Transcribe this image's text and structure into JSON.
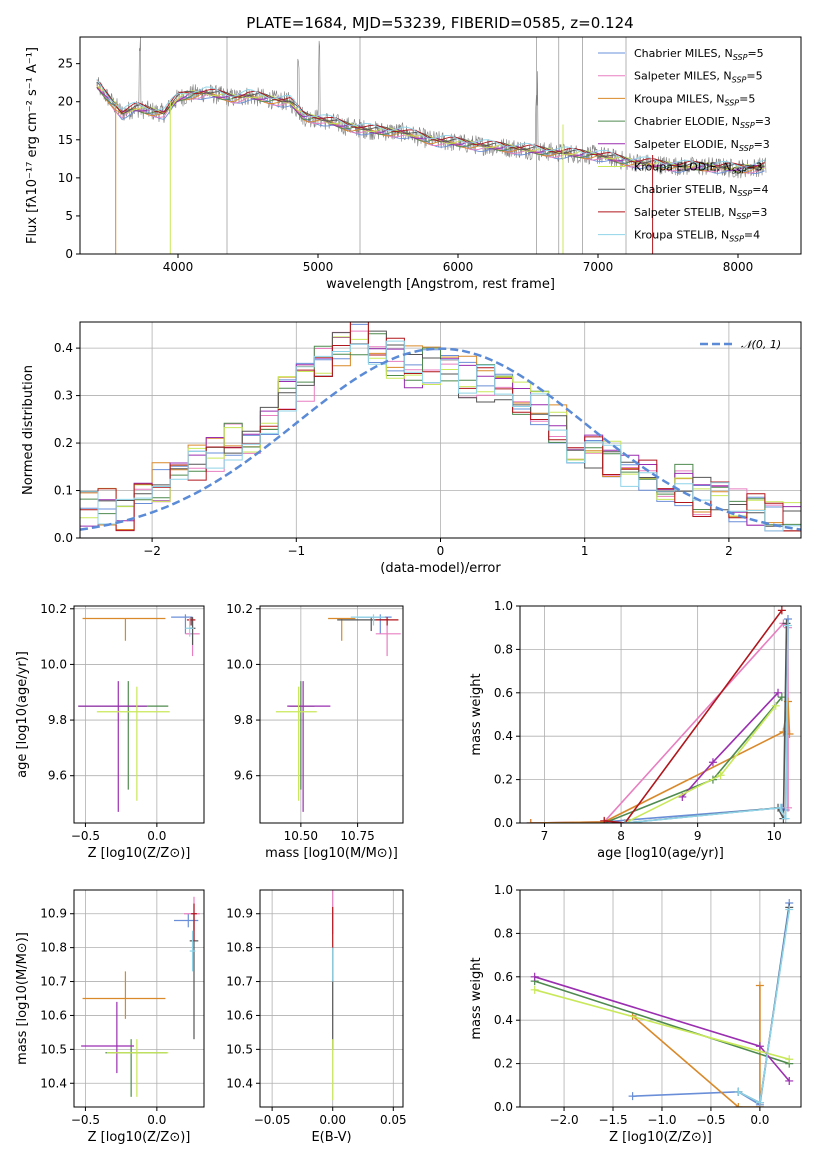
{
  "figure": {
    "title": "PLATE=1684, MJD=53239, FIBERID=0585, z=0.124"
  },
  "colors": {
    "Chabrier MILES": "#6a8fd8",
    "Salpeter MILES": "#e87fc0",
    "Kroupa MILES": "#d9892a",
    "Chabrier ELODIE": "#4f8a4f",
    "Salpeter ELODIE": "#9a2fb0",
    "Kroupa ELODIE": "#c9e85a",
    "Chabrier STELIB": "#555555",
    "Salpeter STELIB": "#b0161c",
    "Kroupa STELIB": "#8fd3e8",
    "Gaussian": "#5b8bd6",
    "Spectrum": "#808080"
  },
  "chart_data": [
    {
      "id": "spectrum",
      "type": "line",
      "xlabel": "wavelength [Angstrom, rest frame]",
      "ylabel": "Flux [fλ10⁻¹⁷ erg cm⁻² s⁻¹ A⁻¹]",
      "xlim": [
        3300,
        8450
      ],
      "ylim": [
        0,
        28.5
      ],
      "xticks": [
        4000,
        5000,
        6000,
        7000,
        8000
      ],
      "yticks": [
        0,
        5,
        10,
        15,
        20,
        25
      ],
      "grid": false,
      "legend_position": "top-right",
      "legend": [
        "Chabrier MILES, NSSP=5",
        "Salpeter MILES, NSSP=5",
        "Kroupa MILES, NSSP=5",
        "Chabrier ELODIE, NSSP=3",
        "Salpeter ELODIE, NSSP=3",
        "Kroupa ELODIE, NSSP=3",
        "Chabrier STELIB, NSSP=4",
        "Salpeter STELIB, NSSP=3",
        "Kroupa STELIB, NSSP=4"
      ],
      "data_trend": {
        "wavelength": [
          3420,
          3500,
          3600,
          3700,
          3800,
          3900,
          4000,
          4100,
          4200,
          4300,
          4400,
          4500,
          4600,
          4700,
          4800,
          4900,
          5000,
          5200,
          5400,
          5600,
          5800,
          6000,
          6200,
          6400,
          6600,
          6800,
          7000,
          7200,
          7400,
          7600,
          7800,
          8000,
          8200
        ],
        "flux": [
          22.2,
          20.5,
          18.5,
          19.2,
          18.8,
          18.5,
          20.5,
          21.0,
          21.2,
          20.8,
          20.5,
          20.8,
          20.5,
          20.2,
          20.0,
          18.0,
          17.8,
          16.8,
          16.2,
          16.0,
          15.0,
          14.6,
          14.2,
          13.9,
          13.5,
          13.2,
          13.0,
          12.2,
          11.8,
          11.5,
          11.5,
          11.2,
          11.5
        ]
      }
    },
    {
      "id": "residual-hist",
      "type": "histogram",
      "xlabel": "(data-model)/error",
      "ylabel": "Normed distribution",
      "xlim": [
        -2.5,
        2.5
      ],
      "ylim": [
        0,
        0.455
      ],
      "xticks": [
        -2,
        -1,
        0,
        1,
        2
      ],
      "yticks": [
        0.0,
        0.1,
        0.2,
        0.3,
        0.4
      ],
      "grid": true,
      "legend_position": "top-right",
      "legend": [
        "𝒩(0, 1)"
      ],
      "bins": 40,
      "profile": [
        0.07,
        0.06,
        0.06,
        0.09,
        0.12,
        0.14,
        0.16,
        0.18,
        0.2,
        0.22,
        0.26,
        0.3,
        0.33,
        0.36,
        0.4,
        0.42,
        0.4,
        0.38,
        0.36,
        0.36,
        0.36,
        0.34,
        0.33,
        0.32,
        0.3,
        0.28,
        0.24,
        0.2,
        0.18,
        0.16,
        0.15,
        0.13,
        0.12,
        0.11,
        0.09,
        0.08,
        0.06,
        0.05,
        0.04,
        0.03
      ]
    },
    {
      "id": "age-vs-Z",
      "type": "errorbar",
      "xlabel": "Z [log10(Z/Z⊙)]",
      "ylabel": "age [log10(age/yr)]",
      "xlim": [
        -0.58,
        0.33
      ],
      "ylim": [
        9.43,
        10.21
      ],
      "xticks": [
        -0.5,
        0.0
      ],
      "yticks": [
        9.6,
        9.8,
        10.0,
        10.2
      ],
      "grid": true,
      "points": [
        {
          "series": "Chabrier MILES",
          "x": 0.2,
          "y": 10.17,
          "xerr": [
            0.1,
            0.05
          ],
          "yerr": [
            0.06,
            0.01
          ]
        },
        {
          "series": "Salpeter MILES",
          "x": 0.25,
          "y": 10.11,
          "xerr": [
            0.05,
            0.05
          ],
          "yerr": [
            0.08,
            0.05
          ]
        },
        {
          "series": "Kroupa MILES",
          "x": -0.22,
          "y": 10.165,
          "xerr": [
            0.3,
            0.28
          ],
          "yerr": [
            0.08,
            0.0
          ]
        },
        {
          "series": "Chabrier ELODIE",
          "x": -0.2,
          "y": 9.85,
          "xerr": [
            0.35,
            0.28
          ],
          "yerr": [
            0.3,
            0.09
          ]
        },
        {
          "series": "Salpeter ELODIE",
          "x": -0.27,
          "y": 9.85,
          "xerr": [
            0.28,
            0.2
          ],
          "yerr": [
            0.38,
            0.09
          ]
        },
        {
          "series": "Kroupa ELODIE",
          "x": -0.14,
          "y": 9.83,
          "xerr": [
            0.28,
            0.23
          ],
          "yerr": [
            0.32,
            0.09
          ]
        },
        {
          "series": "Chabrier STELIB",
          "x": 0.25,
          "y": 10.13,
          "xerr": [
            0.02,
            0.02
          ],
          "yerr": [
            0.06,
            0.04
          ]
        },
        {
          "series": "Salpeter STELIB",
          "x": 0.24,
          "y": 10.16,
          "xerr": [
            0.03,
            0.03
          ],
          "yerr": [
            0.02,
            0.01
          ]
        },
        {
          "series": "Kroupa STELIB",
          "x": 0.23,
          "y": 10.13,
          "xerr": [
            0.03,
            0.03
          ],
          "yerr": [
            0.03,
            0.04
          ]
        }
      ]
    },
    {
      "id": "age-vs-mass",
      "type": "errorbar",
      "xlabel": "mass [log10(M/M⊙)]",
      "ylabel": "",
      "xlim": [
        10.32,
        10.95
      ],
      "ylim": [
        9.43,
        10.21
      ],
      "xticks": [
        10.5,
        10.75
      ],
      "yticks": [
        9.6,
        9.8,
        10.0,
        10.2
      ],
      "grid": true,
      "points": [
        {
          "series": "Chabrier MILES",
          "x": 10.85,
          "y": 10.17,
          "xerr": [
            0.1,
            0.05
          ],
          "yerr": [
            0.06,
            0.01
          ]
        },
        {
          "series": "Salpeter MILES",
          "x": 10.88,
          "y": 10.11,
          "xerr": [
            0.05,
            0.06
          ],
          "yerr": [
            0.08,
            0.05
          ]
        },
        {
          "series": "Kroupa MILES",
          "x": 10.68,
          "y": 10.165,
          "xerr": [
            0.06,
            0.06
          ],
          "yerr": [
            0.08,
            0.0
          ]
        },
        {
          "series": "Chabrier ELODIE",
          "x": 10.5,
          "y": 9.85,
          "xerr": [
            0.05,
            0.06
          ],
          "yerr": [
            0.3,
            0.09
          ]
        },
        {
          "series": "Salpeter ELODIE",
          "x": 10.51,
          "y": 9.85,
          "xerr": [
            0.07,
            0.12
          ],
          "yerr": [
            0.38,
            0.09
          ]
        },
        {
          "series": "Kroupa ELODIE",
          "x": 10.49,
          "y": 9.83,
          "xerr": [
            0.1,
            0.08
          ],
          "yerr": [
            0.32,
            0.09
          ]
        },
        {
          "series": "Chabrier STELIB",
          "x": 10.81,
          "y": 10.16,
          "xerr": [
            0.15,
            0.08
          ],
          "yerr": [
            0.04,
            0.01
          ]
        },
        {
          "series": "Salpeter STELIB",
          "x": 10.88,
          "y": 10.16,
          "xerr": [
            0.05,
            0.05
          ],
          "yerr": [
            0.02,
            0.01
          ]
        },
        {
          "series": "Kroupa STELIB",
          "x": 10.82,
          "y": 10.17,
          "xerr": [
            0.1,
            0.05
          ],
          "yerr": [
            0.03,
            0.01
          ]
        }
      ]
    },
    {
      "id": "mass-weight-vs-age",
      "type": "line",
      "xlabel": "age [log10(age/yr)]",
      "ylabel": "mass weight",
      "xlim": [
        6.68,
        10.35
      ],
      "ylim": [
        0,
        1.0
      ],
      "xticks": [
        7,
        8,
        9,
        10
      ],
      "yticks": [
        0.0,
        0.2,
        0.4,
        0.6,
        0.8,
        1.0
      ],
      "grid": true,
      "series": [
        {
          "series": "Chabrier MILES",
          "x": [
            6.82,
            7.78,
            10.1,
            10.15,
            10.18
          ],
          "y": [
            0.0,
            0.005,
            0.07,
            0.06,
            0.94
          ]
        },
        {
          "series": "Salpeter MILES",
          "x": [
            6.82,
            7.78,
            10.12,
            10.18,
            10.18
          ],
          "y": [
            0.0,
            0.005,
            0.92,
            0.9,
            0.07
          ]
        },
        {
          "series": "Kroupa MILES",
          "x": [
            6.82,
            7.78,
            10.12,
            10.18,
            10.2
          ],
          "y": [
            0.0,
            0.005,
            0.42,
            0.56,
            0.41
          ]
        },
        {
          "series": "Chabrier ELODIE",
          "x": [
            7.78,
            9.2,
            10.1
          ],
          "y": [
            0.0,
            0.2,
            0.58
          ]
        },
        {
          "series": "Salpeter ELODIE",
          "x": [
            8.8,
            9.2,
            10.05
          ],
          "y": [
            0.12,
            0.28,
            0.6
          ]
        },
        {
          "series": "Kroupa ELODIE",
          "x": [
            8.05,
            9.3,
            10.02
          ],
          "y": [
            0.0,
            0.22,
            0.54
          ]
        },
        {
          "series": "Chabrier STELIB",
          "x": [
            8.05,
            10.05,
            10.12,
            10.16
          ],
          "y": [
            0.0,
            0.07,
            0.02,
            0.92
          ]
        },
        {
          "series": "Salpeter STELIB",
          "x": [
            7.78,
            8.05,
            10.1
          ],
          "y": [
            0.01,
            0.0,
            0.98
          ]
        },
        {
          "series": "Kroupa STELIB",
          "x": [
            8.05,
            10.08,
            10.15,
            10.18
          ],
          "y": [
            0.0,
            0.07,
            0.02,
            0.91
          ]
        }
      ]
    },
    {
      "id": "mass-vs-Z",
      "type": "errorbar",
      "xlabel": "Z [log10(Z/Z⊙)]",
      "ylabel": "mass [log10(M/M⊙)]",
      "xlim": [
        -0.58,
        0.33
      ],
      "ylim": [
        10.33,
        10.97
      ],
      "xticks": [
        -0.5,
        0.0
      ],
      "yticks": [
        10.4,
        10.5,
        10.6,
        10.7,
        10.8,
        10.9
      ],
      "grid": true,
      "points": [
        {
          "series": "Chabrier MILES",
          "x": 0.22,
          "y": 10.88,
          "xerr": [
            0.1,
            0.07
          ],
          "yerr": [
            0.02,
            0.02
          ]
        },
        {
          "series": "Salpeter MILES",
          "x": 0.26,
          "y": 10.9,
          "xerr": [
            0.07,
            0.04
          ],
          "yerr": [
            0.05,
            0.05
          ]
        },
        {
          "series": "Kroupa MILES",
          "x": -0.22,
          "y": 10.65,
          "xerr": [
            0.3,
            0.28
          ],
          "yerr": [
            0.06,
            0.08
          ]
        },
        {
          "series": "Chabrier ELODIE",
          "x": -0.18,
          "y": 10.49,
          "xerr": [
            0.18,
            0.25
          ],
          "yerr": [
            0.13,
            0.04
          ]
        },
        {
          "series": "Salpeter ELODIE",
          "x": -0.28,
          "y": 10.51,
          "xerr": [
            0.25,
            0.12
          ],
          "yerr": [
            0.08,
            0.13
          ]
        },
        {
          "series": "Kroupa ELODIE",
          "x": -0.14,
          "y": 10.49,
          "xerr": [
            0.21,
            0.22
          ],
          "yerr": [
            0.13,
            0.04
          ]
        },
        {
          "series": "Chabrier STELIB",
          "x": 0.26,
          "y": 10.82,
          "xerr": [
            0.03,
            0.03
          ],
          "yerr": [
            0.29,
            0.08
          ]
        },
        {
          "series": "Salpeter STELIB",
          "x": 0.26,
          "y": 10.9,
          "xerr": [
            0.02,
            0.02
          ],
          "yerr": [
            0.08,
            0.03
          ]
        },
        {
          "series": "Kroupa STELIB",
          "x": 0.25,
          "y": 10.79,
          "xerr": [
            0.02,
            0.02
          ],
          "yerr": [
            0.06,
            0.06
          ]
        }
      ]
    },
    {
      "id": "mass-vs-EBV",
      "type": "errorbar",
      "xlabel": "E(B-V)",
      "ylabel": "",
      "xlim": [
        -0.06,
        0.058
      ],
      "ylim": [
        10.33,
        10.97
      ],
      "xticks": [
        -0.05,
        0.0,
        0.05
      ],
      "yticks": [
        10.4,
        10.5,
        10.6,
        10.7,
        10.8,
        10.9
      ],
      "grid": true,
      "points": [
        {
          "series": "Salpeter MILES",
          "x": 0.0,
          "y": 10.9,
          "xerr": [
            0.0,
            0.0
          ],
          "yerr": [
            0.06,
            0.07
          ]
        },
        {
          "series": "Chabrier STELIB",
          "x": 0.0,
          "y": 10.7,
          "xerr": [
            0.0,
            0.0
          ],
          "yerr": [
            0.2,
            0.1
          ]
        },
        {
          "series": "Kroupa ELODIE",
          "x": 0.0,
          "y": 10.45,
          "xerr": [
            0.0,
            0.0
          ],
          "yerr": [
            0.1,
            0.08
          ]
        },
        {
          "series": "Salpeter STELIB",
          "x": 0.0,
          "y": 10.85,
          "xerr": [
            0.0,
            0.0
          ],
          "yerr": [
            0.05,
            0.07
          ]
        },
        {
          "series": "Kroupa STELIB",
          "x": 0.0,
          "y": 10.75,
          "xerr": [
            0.0,
            0.0
          ],
          "yerr": [
            0.05,
            0.05
          ]
        }
      ]
    },
    {
      "id": "mass-weight-vs-Z",
      "type": "line",
      "xlabel": "Z [log10(Z/Z⊙)]",
      "ylabel": "mass weight",
      "xlim": [
        -2.45,
        0.42
      ],
      "ylim": [
        0,
        1.0
      ],
      "xticks": [
        -2.0,
        -1.5,
        -1.0,
        -0.5,
        0.0
      ],
      "yticks": [
        0.0,
        0.2,
        0.4,
        0.6,
        0.8,
        1.0
      ],
      "grid": true,
      "series": [
        {
          "series": "Chabrier MILES",
          "x": [
            -1.3,
            -0.22,
            0.0,
            0.3
          ],
          "y": [
            0.05,
            0.07,
            0.01,
            0.94
          ]
        },
        {
          "series": "Kroupa MILES",
          "x": [
            -1.3,
            -0.22,
            0.0,
            0.0,
            0.0
          ],
          "y": [
            0.42,
            0.0,
            0.0,
            0.56,
            0.0
          ]
        },
        {
          "series": "Chabrier ELODIE",
          "x": [
            -2.3,
            0.3
          ],
          "y": [
            0.58,
            0.2
          ]
        },
        {
          "series": "Salpeter ELODIE",
          "x": [
            -2.3,
            0.0,
            0.3
          ],
          "y": [
            0.6,
            0.28,
            0.12
          ]
        },
        {
          "series": "Kroupa ELODIE",
          "x": [
            -2.3,
            0.3
          ],
          "y": [
            0.54,
            0.22
          ]
        },
        {
          "series": "Chabrier STELIB",
          "x": [
            -0.22,
            0.0,
            0.3
          ],
          "y": [
            0.07,
            0.02,
            0.92
          ]
        },
        {
          "series": "Kroupa STELIB",
          "x": [
            -0.22,
            0.0,
            0.3
          ],
          "y": [
            0.07,
            0.02,
            0.91
          ]
        }
      ]
    }
  ]
}
